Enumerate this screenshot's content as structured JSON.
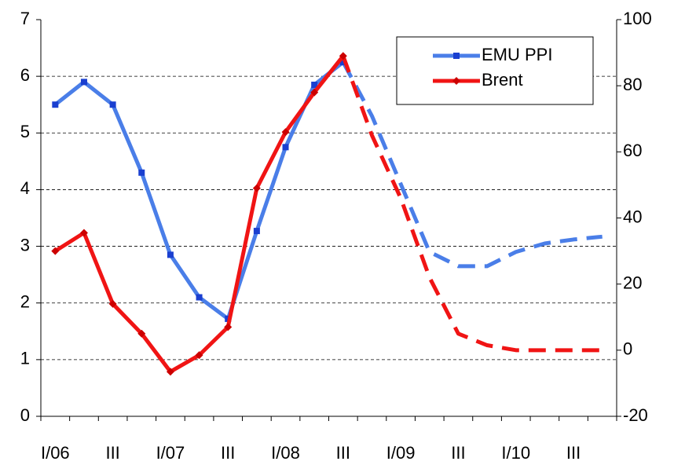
{
  "chart_data": {
    "type": "line",
    "categories": [
      "I/06",
      null,
      "III",
      null,
      "I/07",
      null,
      "III",
      null,
      "I/08",
      null,
      "III",
      null,
      "I/09",
      null,
      "III",
      null,
      "I/10",
      null,
      "III",
      null
    ],
    "dashed_from": 10,
    "series": [
      {
        "name": "EMU PPI",
        "color": "#4a7ee8",
        "marker": "square",
        "axis": "y",
        "values": [
          5.5,
          5.9,
          5.5,
          4.3,
          2.85,
          2.1,
          1.72,
          3.27,
          4.75,
          5.85,
          6.25,
          5.3,
          4.1,
          2.9,
          2.65,
          2.65,
          2.9,
          3.05,
          3.12,
          3.17
        ]
      },
      {
        "name": "Brent",
        "color": "#f01414",
        "marker": "diamond",
        "axis": "y2",
        "values": [
          30,
          35.5,
          14,
          5,
          -6.5,
          -1.5,
          7,
          49,
          66,
          78,
          89,
          65,
          46,
          22,
          5,
          1.5,
          0,
          0,
          0,
          0
        ]
      }
    ],
    "ylim": [
      0,
      7
    ],
    "yticks": [
      0,
      1,
      2,
      3,
      4,
      5,
      6,
      7
    ],
    "y2lim": [
      -20,
      100
    ],
    "y2ticks": [
      -20,
      0,
      20,
      40,
      60,
      80,
      100
    ],
    "grid": true,
    "legend": "top-right"
  }
}
